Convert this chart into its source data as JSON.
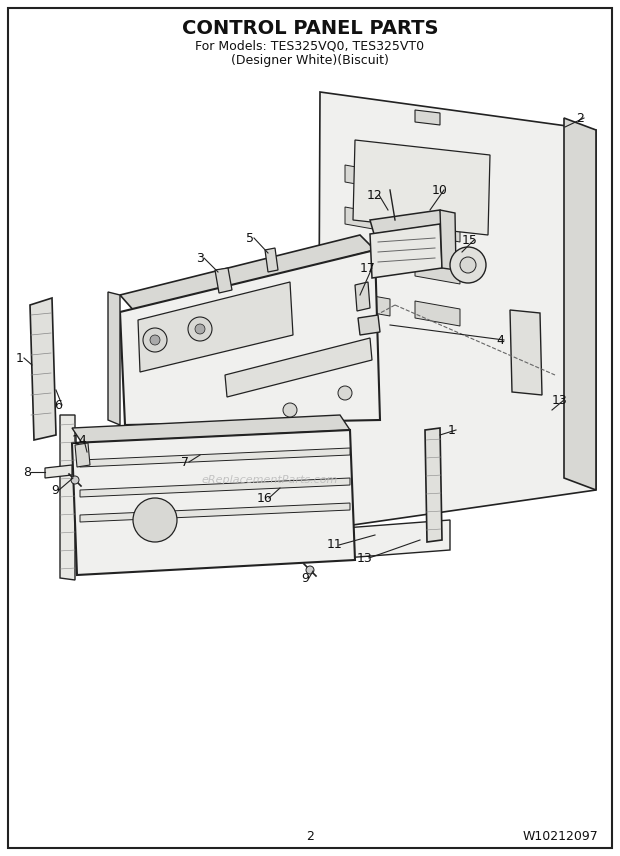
{
  "title": "CONTROL PANEL PARTS",
  "subtitle1": "For Models: TES325VQ0, TES325VT0",
  "subtitle2": "(Designer White)(Biscuit)",
  "page_number": "2",
  "doc_number": "W10212097",
  "bg_color": "#ffffff",
  "line_color": "#222222",
  "light_fill": "#f0f0ee",
  "mid_fill": "#d8d8d4",
  "dark_fill": "#aaaaaa",
  "title_fontsize": 14,
  "subtitle_fontsize": 9,
  "label_fontsize": 9,
  "footer_fontsize": 9
}
